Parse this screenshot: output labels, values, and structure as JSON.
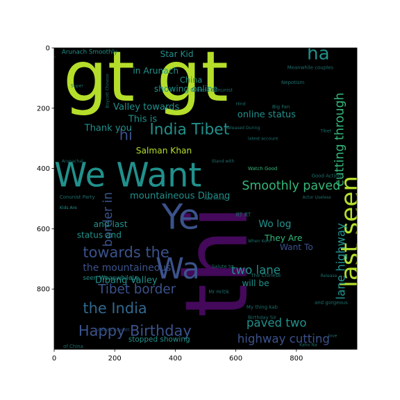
{
  "chart_data": {
    "type": "heatmap",
    "title": "",
    "xlabel": "",
    "ylabel": "",
    "xlim": [
      0,
      1000
    ],
    "ylim": [
      1000,
      0
    ],
    "x_ticks": [
      "0",
      "200",
      "400",
      "600",
      "800"
    ],
    "y_ticks": [
      "0",
      "200",
      "400",
      "600",
      "800"
    ],
    "x_tick_values": [
      0,
      200,
      400,
      600,
      800
    ],
    "y_tick_values": [
      0,
      200,
      400,
      600,
      800
    ],
    "background": "#000000",
    "colormap": "viridis",
    "colors": {
      "purple": "#44095a",
      "indigo": "#3b528b",
      "blue": "#31688e",
      "teal": "#21918c",
      "green": "#35b779",
      "lime": "#b5de2b",
      "dim_blue": "#2d4b7a",
      "dim_teal": "#1d6f6c",
      "dim_green": "#2c8f5d"
    },
    "words": [
      {
        "text": "gt gt",
        "x": 30,
        "y": 175,
        "size": 230,
        "color": "lime"
      },
      {
        "text": "thi",
        "x": 635,
        "y": 895,
        "size": 285,
        "rotate": -90,
        "color": "purple"
      },
      {
        "text": "We Want",
        "x": 0,
        "y": 460,
        "size": 110,
        "color": "teal"
      },
      {
        "text": "Ye",
        "x": 355,
        "y": 600,
        "size": 115,
        "color": "indigo"
      },
      {
        "text": "Wa",
        "x": 335,
        "y": 765,
        "size": 95,
        "color": "indigo"
      },
      {
        "text": "last seen",
        "x": 1005,
        "y": 795,
        "size": 82,
        "rotate": -90,
        "color": "lime"
      },
      {
        "text": "ha",
        "x": 835,
        "y": 38,
        "size": 60,
        "color": "teal"
      },
      {
        "text": "India Tibet",
        "x": 315,
        "y": 287,
        "size": 50,
        "color": "teal"
      },
      {
        "text": "Happy Birthday",
        "x": 80,
        "y": 955,
        "size": 48,
        "color": "indigo"
      },
      {
        "text": "towards the",
        "x": 95,
        "y": 695,
        "size": 48,
        "color": "indigo"
      },
      {
        "text": "the India",
        "x": 95,
        "y": 880,
        "size": 48,
        "color": "blue"
      },
      {
        "text": "Tibet border",
        "x": 145,
        "y": 815,
        "size": 42,
        "color": "indigo"
      },
      {
        "text": "Smoothly paved",
        "x": 620,
        "y": 470,
        "size": 40,
        "color": "green"
      },
      {
        "text": "border in",
        "x": 190,
        "y": 660,
        "size": 40,
        "rotate": -90,
        "color": "indigo"
      },
      {
        "text": "cutting through",
        "x": 955,
        "y": 460,
        "size": 40,
        "rotate": -90,
        "color": "green"
      },
      {
        "text": "lane highway",
        "x": 960,
        "y": 835,
        "size": 38,
        "rotate": -90,
        "color": "teal"
      },
      {
        "text": "highway cutting",
        "x": 605,
        "y": 978,
        "size": 38,
        "color": "indigo"
      },
      {
        "text": "paved two",
        "x": 635,
        "y": 925,
        "size": 38,
        "color": "teal"
      },
      {
        "text": "two lane",
        "x": 585,
        "y": 750,
        "size": 38,
        "color": "teal"
      },
      {
        "text": "hi",
        "x": 215,
        "y": 305,
        "size": 48,
        "color": "indigo"
      },
      {
        "text": "Wo log",
        "x": 675,
        "y": 595,
        "size": 32,
        "color": "teal"
      },
      {
        "text": "Thank you",
        "x": 100,
        "y": 275,
        "size": 30,
        "color": "teal"
      },
      {
        "text": "Valley towards",
        "x": 195,
        "y": 205,
        "size": 30,
        "color": "teal"
      },
      {
        "text": "mountaineous Dibang",
        "x": 250,
        "y": 500,
        "size": 30,
        "color": "teal"
      },
      {
        "text": "the mountaineous",
        "x": 95,
        "y": 740,
        "size": 32,
        "color": "indigo"
      },
      {
        "text": "Dibang Valley",
        "x": 135,
        "y": 780,
        "size": 30,
        "color": "teal"
      },
      {
        "text": "Salman Khan",
        "x": 270,
        "y": 350,
        "size": 28,
        "color": "lime"
      },
      {
        "text": "This is",
        "x": 245,
        "y": 245,
        "size": 30,
        "color": "teal"
      },
      {
        "text": "in Arunach",
        "x": 260,
        "y": 85,
        "size": 28,
        "color": "teal"
      },
      {
        "text": "showing online",
        "x": 330,
        "y": 145,
        "size": 28,
        "color": "teal"
      },
      {
        "text": "Star Kid",
        "x": 350,
        "y": 30,
        "size": 28,
        "color": "teal"
      },
      {
        "text": "China",
        "x": 415,
        "y": 115,
        "size": 26,
        "color": "teal"
      },
      {
        "text": "online status",
        "x": 605,
        "y": 230,
        "size": 30,
        "color": "teal"
      },
      {
        "text": "They Are",
        "x": 695,
        "y": 640,
        "size": 28,
        "color": "green"
      },
      {
        "text": "Want To",
        "x": 745,
        "y": 670,
        "size": 28,
        "color": "indigo"
      },
      {
        "text": "and last",
        "x": 130,
        "y": 595,
        "size": 28,
        "color": "teal"
      },
      {
        "text": "status and",
        "x": 75,
        "y": 630,
        "size": 28,
        "color": "teal"
      },
      {
        "text": "will be",
        "x": 620,
        "y": 790,
        "size": 28,
        "color": "teal"
      },
      {
        "text": "stopped showing",
        "x": 245,
        "y": 975,
        "size": 24,
        "color": "teal"
      },
      {
        "text": "Arunach Smoothly",
        "x": 25,
        "y": 20,
        "size": 20,
        "color": "teal"
      },
      {
        "text": "seen WeanwhileLe",
        "x": 95,
        "y": 770,
        "size": 20,
        "color": "teal"
      },
      {
        "text": "Kids Are",
        "x": 18,
        "y": 535,
        "size": 14,
        "color": "teal"
      },
      {
        "text": "Watch Good",
        "x": 640,
        "y": 405,
        "size": 16,
        "color": "green"
      },
      {
        "text": "Conunist Party",
        "x": 18,
        "y": 500,
        "size": 16,
        "color": "dim_teal"
      },
      {
        "text": "Chinese Conunist",
        "x": 450,
        "y": 145,
        "size": 16,
        "color": "dim_teal"
      },
      {
        "text": "Birthday Sir",
        "x": 640,
        "y": 900,
        "size": 16,
        "color": "dim_teal"
      },
      {
        "text": "Mr Hritik",
        "x": 510,
        "y": 815,
        "size": 16,
        "color": "dim_teal"
      },
      {
        "text": "Useless Boycott",
        "x": 138,
        "y": 940,
        "size": 14,
        "color": "dim_blue"
      },
      {
        "text": "My thing kab",
        "x": 635,
        "y": 865,
        "size": 16,
        "color": "dim_teal"
      },
      {
        "text": "latest account",
        "x": 640,
        "y": 305,
        "size": 14,
        "color": "dim_teal"
      },
      {
        "text": "The Chinese",
        "x": 650,
        "y": 760,
        "size": 16,
        "color": "dim_teal"
      },
      {
        "text": "Released During",
        "x": 565,
        "y": 270,
        "size": 14,
        "color": "dim_teal"
      },
      {
        "text": "Salute to",
        "x": 520,
        "y": 730,
        "size": 16,
        "color": "dim_teal"
      },
      {
        "text": "Good Acting",
        "x": 850,
        "y": 430,
        "size": 16,
        "color": "dim_teal"
      },
      {
        "text": "Nepotism",
        "x": 750,
        "y": 120,
        "size": 16,
        "color": "dim_teal"
      },
      {
        "text": "Big Fan",
        "x": 720,
        "y": 200,
        "size": 16,
        "color": "dim_teal"
      },
      {
        "text": "Meanwhile couples",
        "x": 770,
        "y": 70,
        "size": 16,
        "color": "dim_teal"
      },
      {
        "text": "RT RT",
        "x": 600,
        "y": 560,
        "size": 18,
        "color": "dim_teal"
      },
      {
        "text": "and gorgeous",
        "x": 860,
        "y": 850,
        "size": 16,
        "color": "dim_teal"
      },
      {
        "text": "Actor Useless",
        "x": 820,
        "y": 500,
        "size": 14,
        "color": "dim_teal"
      },
      {
        "text": "When Kohi",
        "x": 640,
        "y": 645,
        "size": 14,
        "color": "dim_teal"
      },
      {
        "text": "Kaho Na",
        "x": 810,
        "y": 990,
        "size": 14,
        "color": "dim_teal"
      },
      {
        "text": "of China",
        "x": 30,
        "y": 995,
        "size": 16,
        "color": "dim_teal"
      },
      {
        "text": "Boycott Chinese",
        "x": 180,
        "y": 200,
        "size": 14,
        "rotate": -90,
        "color": "dim_teal"
      },
      {
        "text": "Red China",
        "x": 495,
        "y": 505,
        "size": 14,
        "color": "dim_teal"
      },
      {
        "text": "Hind",
        "x": 600,
        "y": 190,
        "size": 14,
        "color": "dim_teal"
      },
      {
        "text": "Tibet",
        "x": 880,
        "y": 280,
        "size": 14,
        "color": "dim_teal"
      },
      {
        "text": "Super",
        "x": 55,
        "y": 130,
        "size": 14,
        "color": "dim_teal"
      },
      {
        "text": "Arunachal",
        "x": 25,
        "y": 380,
        "size": 14,
        "color": "dim_teal"
      },
      {
        "text": "Release",
        "x": 880,
        "y": 760,
        "size": 14,
        "color": "dim_teal"
      },
      {
        "text": "Stand with",
        "x": 520,
        "y": 380,
        "size": 14,
        "color": "dim_teal"
      },
      {
        "text": "love",
        "x": 905,
        "y": 960,
        "size": 14,
        "color": "dim_teal"
      },
      {
        "text": "College",
        "x": 0,
        "y": 70,
        "size": 14,
        "rotate": -90,
        "color": "dim_teal"
      }
    ]
  }
}
